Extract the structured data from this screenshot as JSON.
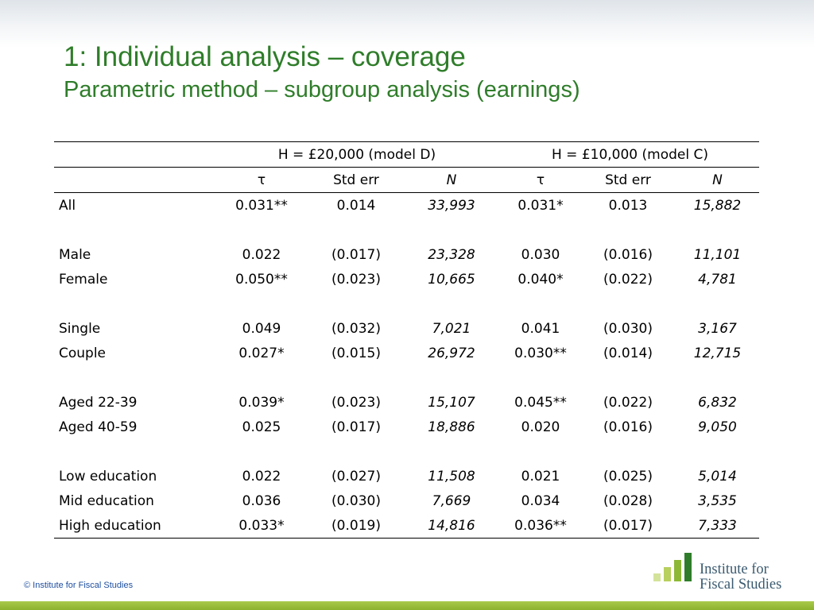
{
  "slide": {
    "title": "1: Individual analysis – coverage",
    "subtitle": "Parametric method – subgroup analysis (earnings)"
  },
  "table": {
    "groups": [
      "H = £20,000 (model D)",
      "H = £10,000 (model C)"
    ],
    "columns": [
      "τ",
      "Std err",
      "N",
      "τ",
      "Std err",
      "N"
    ],
    "rows": [
      {
        "label": "All",
        "cells": [
          "0.031**",
          "0.014",
          "33,993",
          "0.031*",
          "0.013",
          "15,882"
        ]
      },
      {
        "label": "Male",
        "cells": [
          "0.022",
          "(0.017)",
          "23,328",
          "0.030",
          "(0.016)",
          "11,101"
        ]
      },
      {
        "label": "Female",
        "cells": [
          "0.050**",
          "(0.023)",
          "10,665",
          "0.040*",
          "(0.022)",
          "4,781"
        ]
      },
      {
        "label": "Single",
        "cells": [
          "0.049",
          "(0.032)",
          "7,021",
          "0.041",
          "(0.030)",
          "3,167"
        ]
      },
      {
        "label": "Couple",
        "cells": [
          "0.027*",
          "(0.015)",
          "26,972",
          "0.030**",
          "(0.014)",
          "12,715"
        ]
      },
      {
        "label": "Aged 22-39",
        "cells": [
          "0.039*",
          "(0.023)",
          "15,107",
          "0.045**",
          "(0.022)",
          "6,832"
        ]
      },
      {
        "label": "Aged 40-59",
        "cells": [
          "0.025",
          "(0.017)",
          "18,886",
          "0.020",
          "(0.016)",
          "9,050"
        ]
      },
      {
        "label": "Low education",
        "cells": [
          "0.022",
          "(0.027)",
          "11,508",
          "0.021",
          "(0.025)",
          "5,014"
        ]
      },
      {
        "label": "Mid education",
        "cells": [
          "0.036",
          "(0.030)",
          "7,669",
          "0.034",
          "(0.028)",
          "3,535"
        ]
      },
      {
        "label": "High education",
        "cells": [
          "0.033*",
          "(0.019)",
          "14,816",
          "0.036**",
          "(0.017)",
          "7,333"
        ]
      }
    ]
  },
  "footer": {
    "copyright": "© Institute for Fiscal Studies",
    "logo_line1": "Institute for",
    "logo_line2": "Fiscal Studies"
  },
  "colors": {
    "title": "#2f7d2a",
    "logo_bars": [
      "#d4e39a",
      "#b7d05e",
      "#8db836",
      "#2f7d2a"
    ],
    "bottom_bar": "#9bbd3c"
  }
}
